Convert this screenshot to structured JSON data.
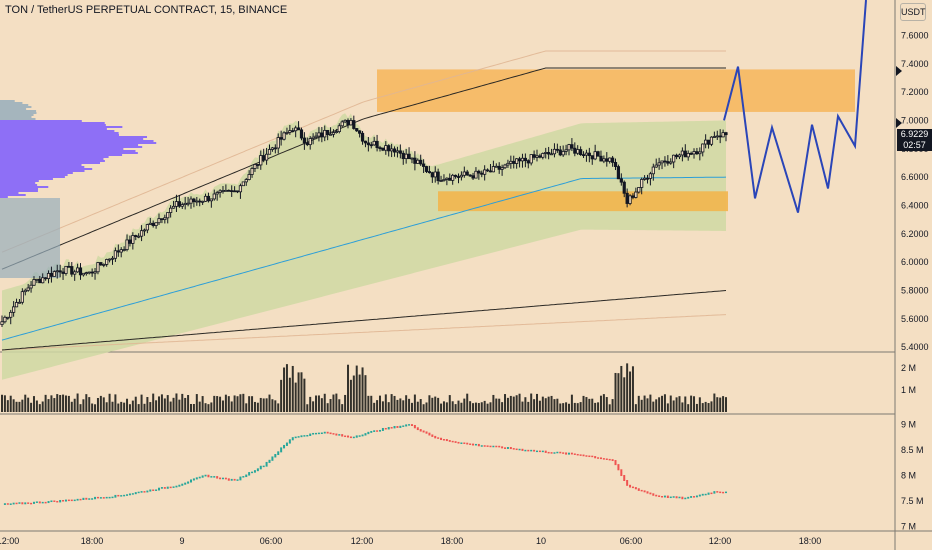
{
  "header": {
    "title": "TON / TetherUS PERPETUAL CONTRACT, 15, BINANCE",
    "currency_button": "USDT",
    "last_price": "6.9229",
    "countdown": "02:57"
  },
  "chart_data": [
    {
      "type": "candlestick",
      "title": "TON / TetherUS PERPETUAL CONTRACT, 15, BINANCE",
      "y_ticks": [
        5.4,
        5.6,
        5.8,
        6.0,
        6.2,
        6.4,
        6.6,
        6.8,
        7.0,
        7.2,
        7.4,
        7.6
      ],
      "y_tick_labels": [
        "5.4000",
        "5.6000",
        "5.8000",
        "6.0000",
        "6.2000",
        "6.4000",
        "6.6000",
        "6.8000",
        "7.0000",
        "7.2000",
        "7.4000",
        "7.6000"
      ],
      "ylim": [
        5.38,
        7.85
      ],
      "x_tick_labels": [
        "12:00",
        "18:00",
        "9",
        "06:00",
        "12:00",
        "18:00",
        "10",
        "06:00",
        "12:00",
        "18:00"
      ],
      "close_anchors": [
        [
          0,
          5.58
        ],
        [
          10,
          5.85
        ],
        [
          20,
          5.95
        ],
        [
          30,
          5.92
        ],
        [
          40,
          6.08
        ],
        [
          50,
          6.25
        ],
        [
          60,
          6.4
        ],
        [
          70,
          6.45
        ],
        [
          80,
          6.5
        ],
        [
          90,
          6.75
        ],
        [
          100,
          6.95
        ],
        [
          105,
          6.85
        ],
        [
          110,
          6.9
        ],
        [
          120,
          7.0
        ],
        [
          125,
          6.85
        ],
        [
          135,
          6.8
        ],
        [
          150,
          6.6
        ],
        [
          165,
          6.62
        ],
        [
          180,
          6.72
        ],
        [
          195,
          6.8
        ],
        [
          210,
          6.72
        ],
        [
          215,
          6.42
        ],
        [
          225,
          6.7
        ],
        [
          240,
          6.8
        ],
        [
          245,
          6.9
        ]
      ],
      "last_price": 6.9229,
      "zones": [
        {
          "name": "supply",
          "color": "#f6b861",
          "y": [
            7.06,
            7.36
          ]
        },
        {
          "name": "demand",
          "color": "#f2b54d",
          "y": [
            6.36,
            6.5
          ]
        }
      ],
      "projection": [
        [
          7.0
        ],
        [
          7.38
        ],
        [
          6.45
        ],
        [
          6.95
        ],
        [
          6.35
        ],
        [
          6.97
        ],
        [
          6.52
        ],
        [
          7.03
        ],
        [
          6.82
        ],
        [
          7.85
        ]
      ],
      "colors": {
        "up": "#131722",
        "down": "#131722",
        "vwap": "#2c9ed8",
        "band_fill": "#cfd9a3",
        "projection": "#2a45b8",
        "profile": "#7b5cff",
        "profile_gray": "#97aebc"
      }
    },
    {
      "type": "bar",
      "name": "Volume",
      "y_tick_labels": [
        "2 M",
        "1 M"
      ],
      "ylim": [
        0,
        2.6
      ],
      "color": "#33312b"
    },
    {
      "type": "line",
      "name": "Indicator",
      "y_tick_labels": [
        "9 M",
        "8.5 M",
        "8 M",
        "7.5 M",
        "7 M"
      ],
      "ylim": [
        6.95,
        9.15
      ],
      "anchors": [
        [
          0,
          7.43
        ],
        [
          20,
          7.5
        ],
        [
          40,
          7.6
        ],
        [
          60,
          7.8
        ],
        [
          70,
          8.0
        ],
        [
          80,
          7.9
        ],
        [
          90,
          8.2
        ],
        [
          100,
          8.75
        ],
        [
          110,
          8.85
        ],
        [
          120,
          8.75
        ],
        [
          130,
          8.9
        ],
        [
          140,
          9.0
        ],
        [
          150,
          8.72
        ],
        [
          160,
          8.62
        ],
        [
          180,
          8.5
        ],
        [
          200,
          8.4
        ],
        [
          210,
          8.3
        ],
        [
          215,
          7.8
        ],
        [
          225,
          7.6
        ],
        [
          235,
          7.55
        ],
        [
          245,
          7.68
        ]
      ],
      "up_color": "#26a69a",
      "down_color": "#ef5350"
    }
  ]
}
